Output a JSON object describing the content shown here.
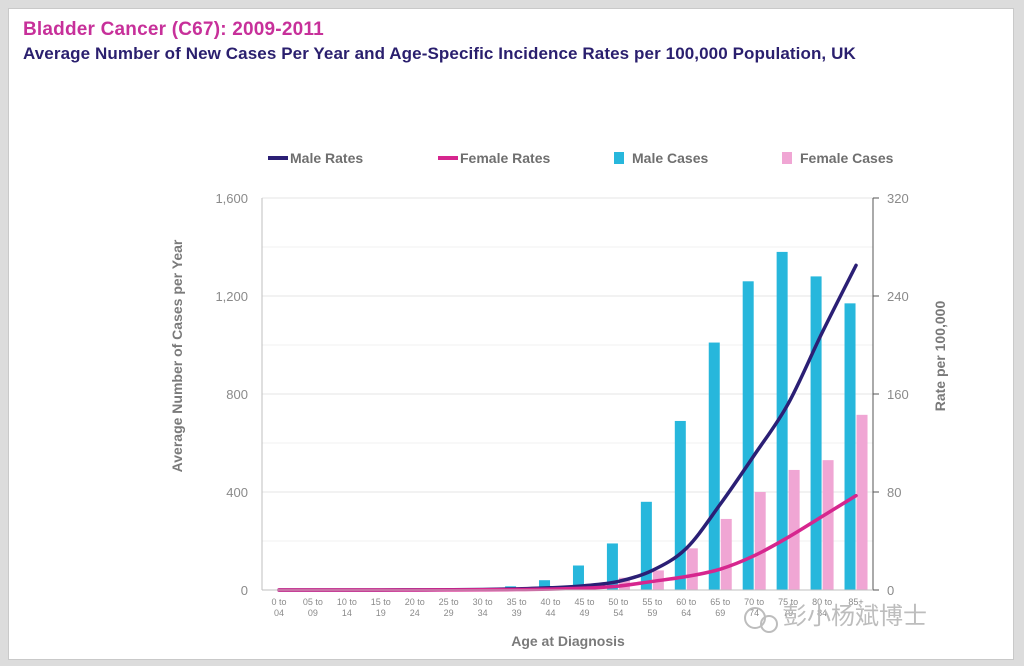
{
  "header": {
    "title": "Bladder Cancer (C67): 2009-2011",
    "subtitle": "Average Number of New Cases Per Year and Age-Specific Incidence Rates per 100,000 Population, UK"
  },
  "watermark": {
    "text": "彭小杨斌博士"
  },
  "chart_data": {
    "type": "bar",
    "xlabel": "Age at Diagnosis",
    "ylabel": "Average Number of Cases per Year",
    "y2label": "Rate per 100,000",
    "ylim": [
      0,
      1600
    ],
    "y2lim": [
      0,
      320
    ],
    "yticks": [
      0,
      400,
      800,
      1200,
      1600
    ],
    "yticklabels": [
      "0",
      "400",
      "800",
      "1,200",
      "1,600"
    ],
    "y2ticks": [
      0,
      80,
      160,
      240,
      320
    ],
    "y2ticklabels": [
      "0",
      "80",
      "160",
      "240",
      "320"
    ],
    "grid": true,
    "legend_position": "top",
    "categories": [
      [
        "0 to",
        "04"
      ],
      [
        "05 to",
        "09"
      ],
      [
        "10 to",
        "14"
      ],
      [
        "15 to",
        "19"
      ],
      [
        "20 to",
        "24"
      ],
      [
        "25 to",
        "29"
      ],
      [
        "30 to",
        "34"
      ],
      [
        "35 to",
        "39"
      ],
      [
        "40 to",
        "44"
      ],
      [
        "45 to",
        "49"
      ],
      [
        "50 to",
        "54"
      ],
      [
        "55 to",
        "59"
      ],
      [
        "60 to",
        "64"
      ],
      [
        "65 to",
        "69"
      ],
      [
        "70 to",
        "74"
      ],
      [
        "75 to",
        "79"
      ],
      [
        "80 to",
        "84"
      ],
      [
        "85+",
        ""
      ]
    ],
    "series": [
      {
        "name": "Male Rates",
        "kind": "line",
        "axis": "right",
        "color": "#2b1f75",
        "values": [
          0,
          0,
          0,
          0,
          0.1,
          0.2,
          0.4,
          0.9,
          1.8,
          3.5,
          7,
          16,
          34,
          70,
          110,
          152,
          210,
          265
        ]
      },
      {
        "name": "Female Rates",
        "kind": "line",
        "axis": "right",
        "color": "#d6268e",
        "values": [
          0,
          0,
          0,
          0,
          0,
          0.1,
          0.2,
          0.4,
          0.7,
          1.5,
          3.2,
          7,
          11,
          17,
          28,
          43,
          60,
          77
        ]
      },
      {
        "name": "Male Cases",
        "kind": "bar",
        "axis": "left",
        "color": "#27b7dc",
        "values": [
          0,
          0,
          0,
          1,
          2,
          4,
          6,
          15,
          40,
          100,
          190,
          360,
          690,
          1010,
          1260,
          1380,
          1280,
          1170
        ]
      },
      {
        "name": "Female Cases",
        "kind": "bar",
        "axis": "left",
        "color": "#f0a6d4",
        "values": [
          0,
          0,
          0,
          0,
          1,
          2,
          3,
          5,
          10,
          25,
          50,
          80,
          170,
          290,
          400,
          490,
          530,
          715
        ]
      }
    ]
  }
}
